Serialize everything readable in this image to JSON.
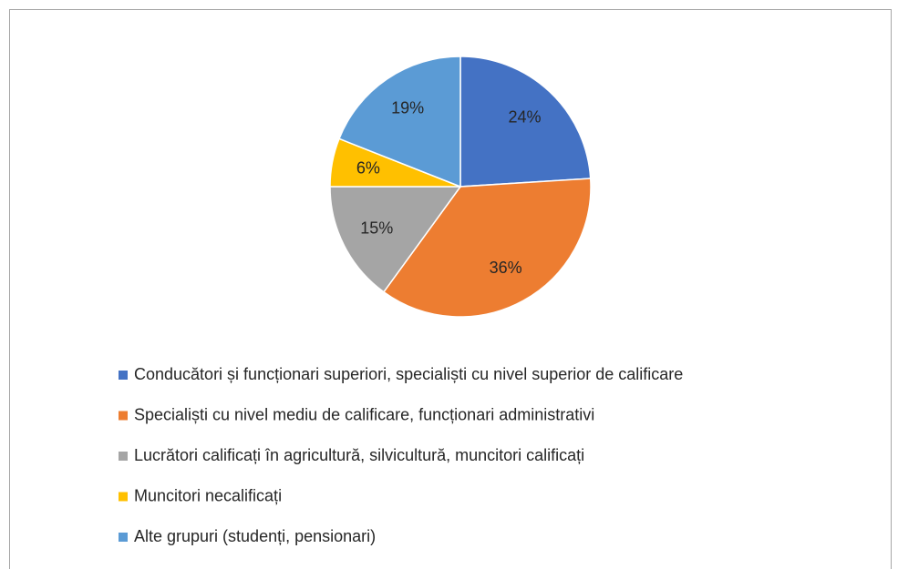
{
  "chart_data": {
    "type": "pie",
    "categories": [
      "Conducători și funcționari superiori, specialiști cu nivel superior de calificare",
      "Specialiști cu nivel mediu de calificare, funcționari administrativi",
      "Lucrători calificați în agricultură, silvicultură, muncitori calificați",
      "Muncitori necalificați",
      "Alte grupuri (studenți, pensionari)"
    ],
    "values": [
      24,
      36,
      15,
      6,
      19
    ],
    "value_labels": [
      "24%",
      "36%",
      "15%",
      "6%",
      "19%"
    ],
    "colors": [
      "#4472c4",
      "#ed7d31",
      "#a5a5a5",
      "#ffc000",
      "#5b9bd5"
    ],
    "legend": "bottom"
  }
}
